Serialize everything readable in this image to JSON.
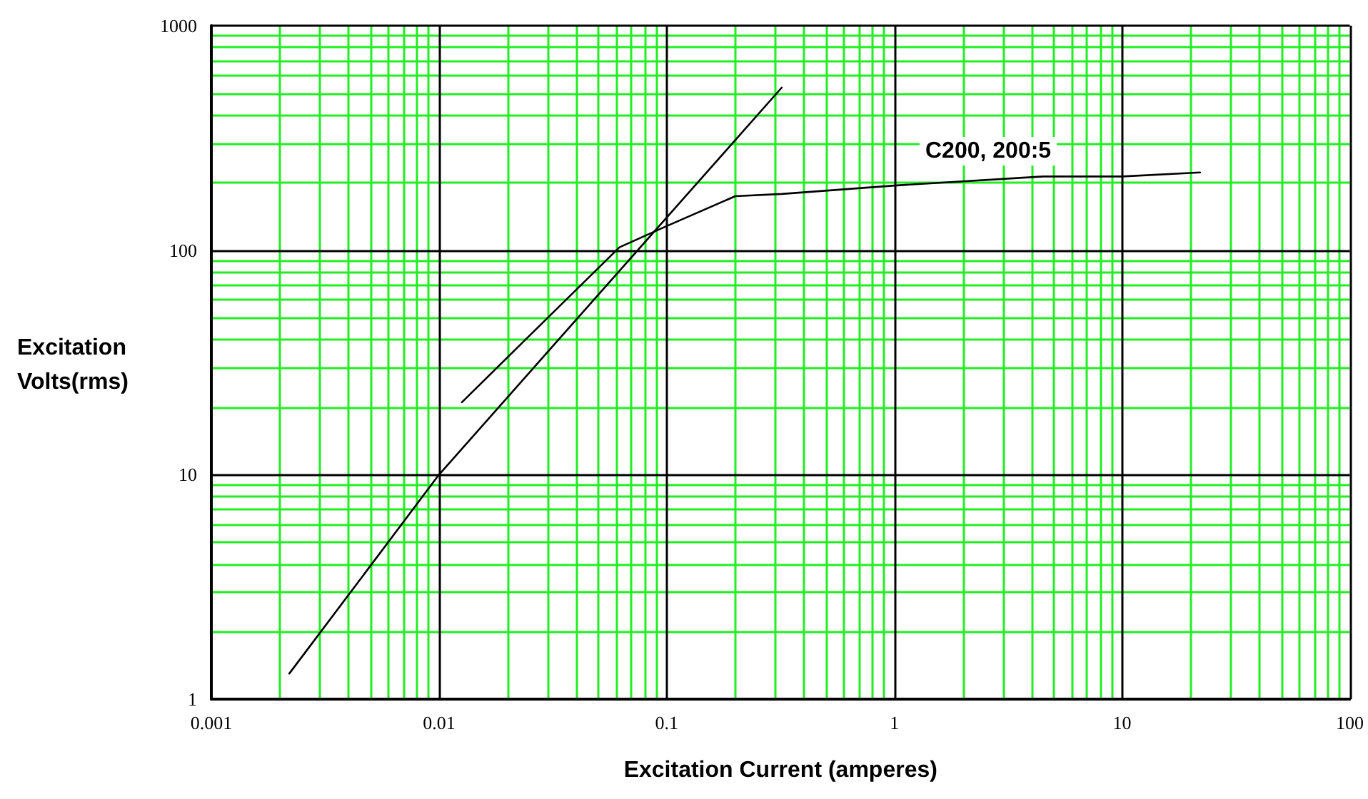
{
  "chart_data": {
    "type": "line",
    "xlabel": "Excitation Current (amperes)",
    "ylabel": "Excitation Volts(rms)",
    "log": "xy",
    "grid": true,
    "marker": "none",
    "line_style": "solid",
    "xlim": [
      0.001,
      100
    ],
    "xticks": [
      0.001,
      {
        "value": 0.002,
        "label": null
      },
      {
        "value": 0.003,
        "label": null
      },
      {
        "value": 0.004,
        "label": null
      },
      {
        "value": 0.005,
        "label": null
      },
      {
        "value": 0.006,
        "label": null
      },
      {
        "value": 0.007,
        "label": null
      },
      {
        "value": 0.008,
        "label": null
      },
      {
        "value": 0.009,
        "label": null
      },
      0.01,
      {
        "value": 0.02,
        "label": null
      },
      {
        "value": 0.03,
        "label": null
      },
      {
        "value": 0.04,
        "label": null
      },
      {
        "value": 0.05,
        "label": null
      },
      {
        "value": 0.06,
        "label": null
      },
      {
        "value": 0.07,
        "label": null
      },
      {
        "value": 0.08,
        "label": null
      },
      {
        "value": 0.09,
        "label": null
      },
      0.1,
      {
        "value": 0.2,
        "label": null
      },
      {
        "value": 0.3,
        "label": null
      },
      {
        "value": 0.4,
        "label": null
      },
      {
        "value": 0.5,
        "label": null
      },
      {
        "value": 0.6,
        "label": null
      },
      {
        "value": 0.7,
        "label": null
      },
      {
        "value": 0.8,
        "label": null
      },
      {
        "value": 0.9,
        "label": null
      },
      1,
      {
        "value": 2,
        "label": null
      },
      {
        "value": 3,
        "label": null
      },
      {
        "value": 4,
        "label": null
      },
      {
        "value": 5,
        "label": null
      },
      {
        "value": 6,
        "label": null
      },
      {
        "value": 7,
        "label": null
      },
      {
        "value": 8,
        "label": null
      },
      {
        "value": 9,
        "label": null
      },
      10,
      {
        "value": 20,
        "label": null
      },
      {
        "value": 30,
        "label": null
      },
      {
        "value": 40,
        "label": null
      },
      {
        "value": 50,
        "label": null
      },
      {
        "value": 60,
        "label": null
      },
      {
        "value": 70,
        "label": null
      },
      {
        "value": 80,
        "label": null
      },
      {
        "value": 90,
        "label": null
      },
      100
    ],
    "ylim": [
      1,
      1000
    ],
    "yticks": [
      1,
      {
        "value": 2,
        "label": null
      },
      {
        "value": 3,
        "label": null
      },
      {
        "value": 4,
        "label": null
      },
      {
        "value": 5,
        "label": null
      },
      {
        "value": 6,
        "label": null
      },
      {
        "value": 7,
        "label": null
      },
      {
        "value": 8,
        "label": null
      },
      {
        "value": 9,
        "label": null
      },
      10,
      {
        "value": 20,
        "label": null
      },
      {
        "value": 30,
        "label": null
      },
      {
        "value": 40,
        "label": null
      },
      {
        "value": 50,
        "label": null
      },
      {
        "value": 60,
        "label": null
      },
      {
        "value": 70,
        "label": null
      },
      {
        "value": 80,
        "label": null
      },
      {
        "value": 90,
        "label": null
      },
      100,
      {
        "value": 200,
        "label": null
      },
      {
        "value": 300,
        "label": null
      },
      {
        "value": 400,
        "label": null
      },
      {
        "value": 500,
        "label": null
      },
      {
        "value": 600,
        "label": null
      },
      {
        "value": 700,
        "label": null
      },
      {
        "value": 800,
        "label": null
      },
      {
        "value": 900,
        "label": null
      },
      1000
    ],
    "series": [
      {
        "color": "#000000",
        "x": [
          0.0022,
          0.01,
          0.32
        ],
        "values": [
          1.3,
          10,
          530
        ]
      },
      {
        "color": "#000000",
        "x": [
          0.0126,
          0.024,
          0.062,
          0.1,
          0.2,
          0.32,
          1,
          4.5,
          10,
          22
        ],
        "values": [
          21,
          40,
          103,
          128,
          174,
          178,
          194,
          213,
          213,
          222
        ]
      }
    ],
    "annotations": [
      "C200, 200:5"
    ]
  }
}
